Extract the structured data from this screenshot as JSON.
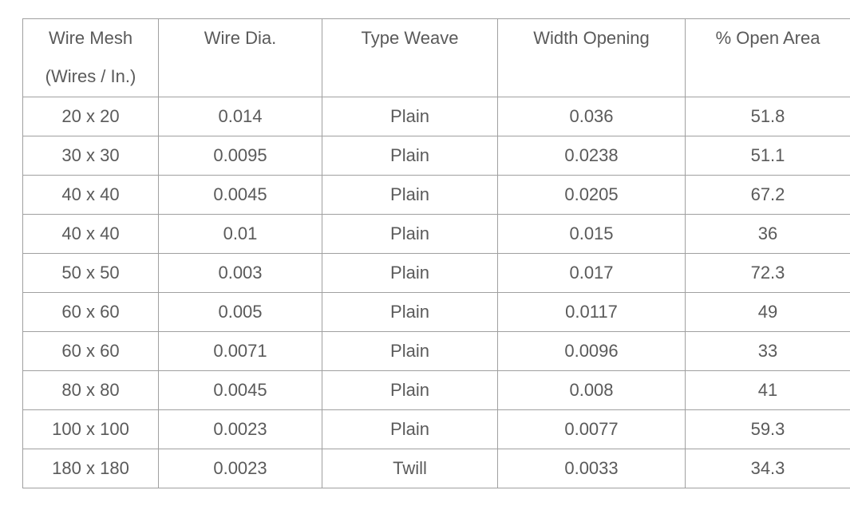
{
  "table": {
    "header": [
      "Wire Mesh (Wires / In.)",
      "Wire Dia.",
      "Type Weave",
      "Width Opening",
      "% Open Area"
    ],
    "rows": [
      [
        "20 x 20",
        "0.014",
        "Plain",
        "0.036",
        "51.8"
      ],
      [
        "30 x 30",
        "0.0095",
        "Plain",
        "0.0238",
        "51.1"
      ],
      [
        "40 x 40",
        "0.0045",
        "Plain",
        "0.0205",
        "67.2"
      ],
      [
        "40 x 40",
        "0.01",
        "Plain",
        "0.015",
        "36"
      ],
      [
        "50 x 50",
        "0.003",
        "Plain",
        "0.017",
        "72.3"
      ],
      [
        "60 x 60",
        "0.005",
        "Plain",
        "0.0117",
        "49"
      ],
      [
        "60 x 60",
        "0.0071",
        "Plain",
        "0.0096",
        "33"
      ],
      [
        "80 x 80",
        "0.0045",
        "Plain",
        "0.008",
        "41"
      ],
      [
        "100 x 100",
        "0.0023",
        "Plain",
        "0.0077",
        "59.3"
      ],
      [
        "180 x 180",
        "0.0023",
        "Twill",
        "0.0033",
        "34.3"
      ]
    ]
  }
}
